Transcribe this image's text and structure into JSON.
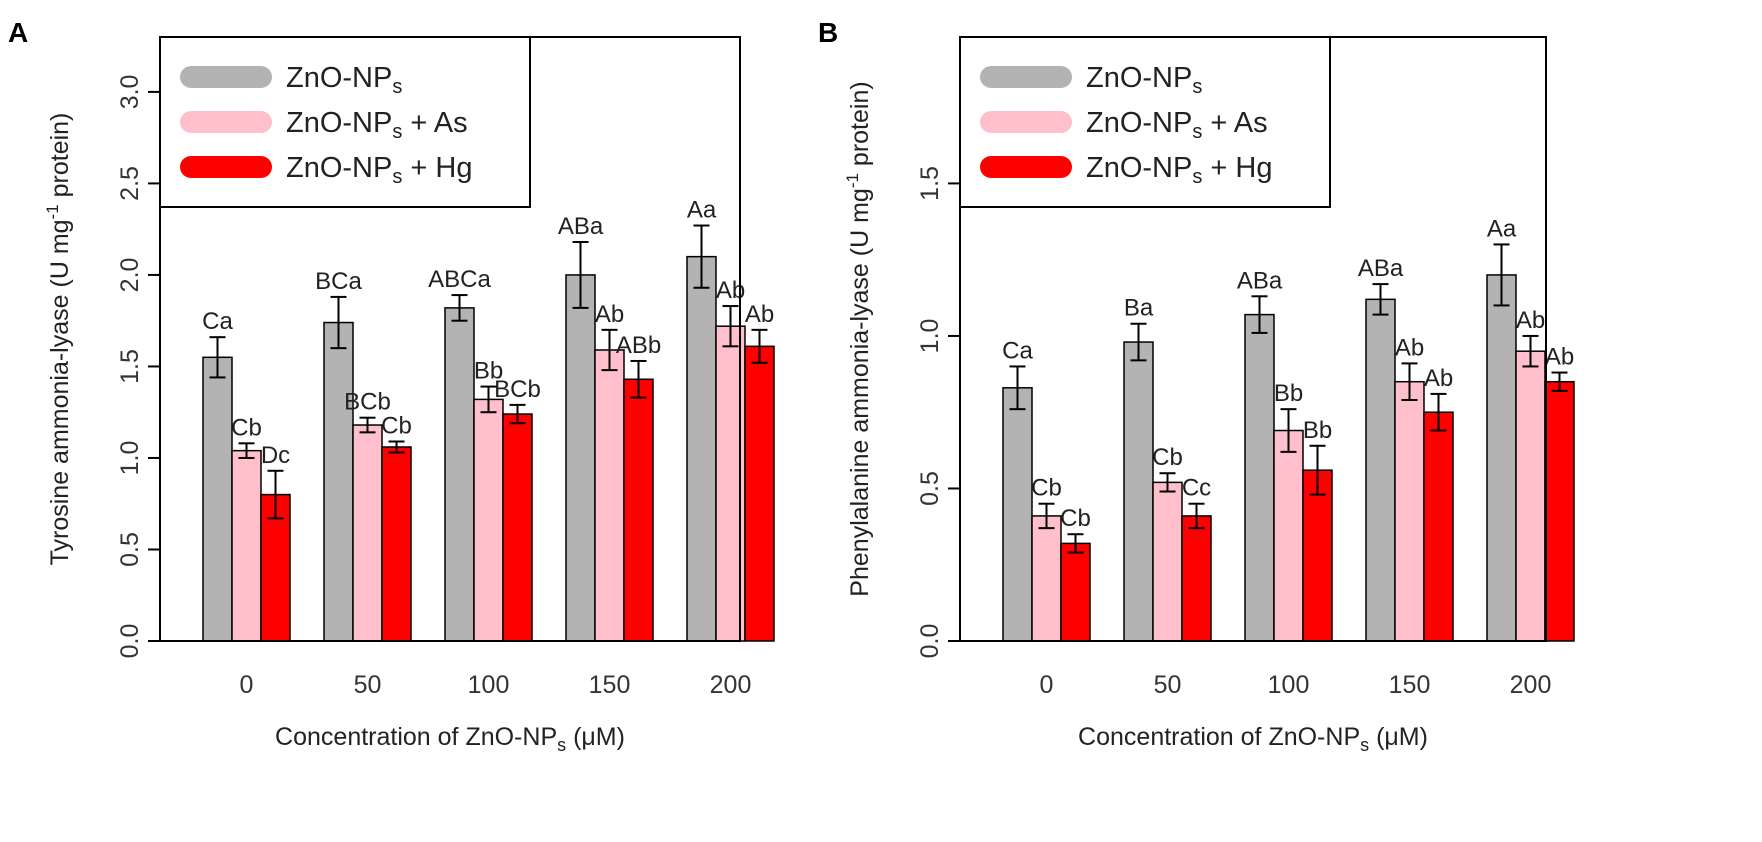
{
  "figure": {
    "x_axis": {
      "title_main": "Concentration of ZnO-NP",
      "title_sub": "s",
      "title_tail": " (μM)"
    }
  },
  "legend": {
    "entries": [
      {
        "main": "ZnO-NP",
        "sub": "s",
        "tail": "",
        "color": "#b3b3b3"
      },
      {
        "main": "ZnO-NP",
        "sub": "s",
        "tail": " + As",
        "color": "#ffc0cb"
      },
      {
        "main": "ZnO-NP",
        "sub": "s",
        "tail": " + Hg",
        "color": "#ff0000"
      }
    ]
  },
  "chart_data": [
    {
      "panel": "A",
      "type": "bar",
      "ylabel_main": "Tyrosine ammonia-lyase (U mg",
      "ylabel_sup": "-1",
      "ylabel_tail": " protein)",
      "ylim": [
        0,
        3.3
      ],
      "yticks": [
        "0.0",
        "0.5",
        "1.0",
        "1.5",
        "2.0",
        "2.5",
        "3.0"
      ],
      "ytick_values": [
        0,
        0.5,
        1.0,
        1.5,
        2.0,
        2.5,
        3.0
      ],
      "categories": [
        "0",
        "50",
        "100",
        "150",
        "200"
      ],
      "series": [
        {
          "name": "ZnO-NPs",
          "color": "#b3b3b3",
          "values": [
            1.55,
            1.74,
            1.82,
            2.0,
            2.1
          ],
          "errors": [
            0.11,
            0.14,
            0.07,
            0.18,
            0.17
          ],
          "labels": [
            "Ca",
            "BCa",
            "ABCa",
            "ABa",
            "Aa"
          ]
        },
        {
          "name": "ZnO-NPs + As",
          "color": "#ffc0cb",
          "values": [
            1.04,
            1.18,
            1.32,
            1.59,
            1.72
          ],
          "errors": [
            0.04,
            0.04,
            0.07,
            0.11,
            0.11
          ],
          "labels": [
            "Cb",
            "BCb",
            "Bb",
            "Ab",
            "Ab"
          ]
        },
        {
          "name": "ZnO-NPs + Hg",
          "color": "#ff0000",
          "values": [
            0.8,
            1.06,
            1.24,
            1.43,
            1.61
          ],
          "errors": [
            0.13,
            0.03,
            0.05,
            0.1,
            0.09
          ],
          "labels": [
            "Dc",
            "Cb",
            "BCb",
            "ABb",
            "Ab"
          ]
        }
      ]
    },
    {
      "panel": "B",
      "type": "bar",
      "ylabel_main": "Phenylalanine ammonia-lyase (U mg",
      "ylabel_sup": "-1",
      "ylabel_tail": " protein)",
      "ylim": [
        0,
        1.98
      ],
      "yticks": [
        "0.0",
        "0.5",
        "1.0",
        "1.5"
      ],
      "ytick_values": [
        0,
        0.5,
        1.0,
        1.5
      ],
      "categories": [
        "0",
        "50",
        "100",
        "150",
        "200"
      ],
      "series": [
        {
          "name": "ZnO-NPs",
          "color": "#b3b3b3",
          "values": [
            0.83,
            0.98,
            1.07,
            1.12,
            1.2
          ],
          "errors": [
            0.07,
            0.06,
            0.06,
            0.05,
            0.1
          ],
          "labels": [
            "Ca",
            "Ba",
            "ABa",
            "ABa",
            "Aa"
          ]
        },
        {
          "name": "ZnO-NPs + As",
          "color": "#ffc0cb",
          "values": [
            0.41,
            0.52,
            0.69,
            0.85,
            0.95
          ],
          "errors": [
            0.04,
            0.03,
            0.07,
            0.06,
            0.05
          ],
          "labels": [
            "Cb",
            "Cb",
            "Bb",
            "Ab",
            "Ab"
          ]
        },
        {
          "name": "ZnO-NPs + Hg",
          "color": "#ff0000",
          "values": [
            0.32,
            0.41,
            0.56,
            0.75,
            0.85
          ],
          "errors": [
            0.03,
            0.04,
            0.08,
            0.06,
            0.03
          ],
          "labels": [
            "Cb",
            "Cc",
            "Bb",
            "Ab",
            "Ab"
          ]
        }
      ]
    }
  ]
}
